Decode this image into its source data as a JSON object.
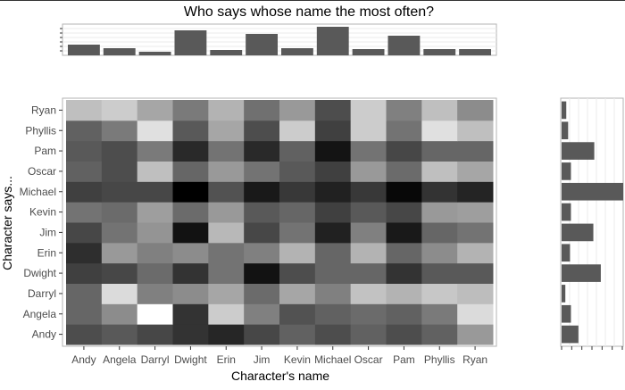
{
  "chart_data": [
    {
      "type": "heatmap",
      "title": "Who says whose name the most often?",
      "xlabel": "Character's name",
      "ylabel": "Character says...",
      "x_categories": [
        "Andy",
        "Angela",
        "Darryl",
        "Dwight",
        "Erin",
        "Jim",
        "Kevin",
        "Michael",
        "Oscar",
        "Pam",
        "Phyllis",
        "Ryan"
      ],
      "y_categories": [
        "Andy",
        "Angela",
        "Darryl",
        "Dwight",
        "Erin",
        "Jim",
        "Kevin",
        "Michael",
        "Oscar",
        "Pam",
        "Phyllis",
        "Ryan"
      ],
      "intensity_note": "0 = lightest, 1 = darkest",
      "values": [
        [
          0.7,
          0.65,
          0.72,
          0.8,
          0.85,
          0.72,
          0.62,
          0.7,
          0.62,
          0.7,
          0.62,
          0.4
        ],
        [
          0.6,
          0.45,
          0.0,
          0.8,
          0.2,
          0.5,
          0.68,
          0.62,
          0.58,
          0.62,
          0.52,
          0.14
        ],
        [
          0.6,
          0.14,
          0.5,
          0.45,
          0.35,
          0.58,
          0.35,
          0.5,
          0.24,
          0.3,
          0.22,
          0.26
        ],
        [
          0.75,
          0.72,
          0.58,
          0.8,
          0.55,
          0.93,
          0.7,
          0.6,
          0.6,
          0.8,
          0.65,
          0.65
        ],
        [
          0.82,
          0.4,
          0.5,
          0.45,
          0.55,
          0.5,
          0.3,
          0.6,
          0.3,
          0.6,
          0.45,
          0.3
        ],
        [
          0.72,
          0.55,
          0.42,
          0.93,
          0.28,
          0.72,
          0.55,
          0.87,
          0.5,
          0.9,
          0.6,
          0.55
        ],
        [
          0.55,
          0.58,
          0.38,
          0.58,
          0.4,
          0.65,
          0.6,
          0.75,
          0.65,
          0.72,
          0.4,
          0.38
        ],
        [
          0.75,
          0.72,
          0.72,
          1.0,
          0.68,
          0.9,
          0.78,
          0.87,
          0.78,
          0.97,
          0.8,
          0.86
        ],
        [
          0.62,
          0.7,
          0.25,
          0.6,
          0.4,
          0.55,
          0.65,
          0.75,
          0.4,
          0.58,
          0.25,
          0.35
        ],
        [
          0.65,
          0.7,
          0.52,
          0.84,
          0.55,
          0.84,
          0.62,
          0.92,
          0.55,
          0.72,
          0.6,
          0.6
        ],
        [
          0.62,
          0.52,
          0.12,
          0.65,
          0.35,
          0.7,
          0.2,
          0.75,
          0.2,
          0.55,
          0.12,
          0.25
        ],
        [
          0.25,
          0.2,
          0.35,
          0.52,
          0.3,
          0.56,
          0.4,
          0.7,
          0.2,
          0.5,
          0.25,
          0.45
        ]
      ]
    },
    {
      "type": "bar",
      "orientation": "vertical",
      "categories": [
        "Andy",
        "Angela",
        "Darryl",
        "Dwight",
        "Erin",
        "Jim",
        "Kevin",
        "Michael",
        "Oscar",
        "Pam",
        "Phyllis",
        "Ryan"
      ],
      "values": [
        12,
        8,
        4,
        28,
        6,
        24,
        8,
        32,
        7,
        22,
        7,
        7
      ],
      "ylim": [
        0,
        35
      ]
    },
    {
      "type": "bar",
      "orientation": "horizontal",
      "categories": [
        "Andy",
        "Angela",
        "Darryl",
        "Dwight",
        "Erin",
        "Jim",
        "Kevin",
        "Michael",
        "Oscar",
        "Pam",
        "Phyllis",
        "Ryan"
      ],
      "values": [
        18,
        10,
        4,
        42,
        9,
        34,
        10,
        66,
        10,
        35,
        7,
        5
      ],
      "xlim": [
        0,
        66
      ]
    }
  ]
}
